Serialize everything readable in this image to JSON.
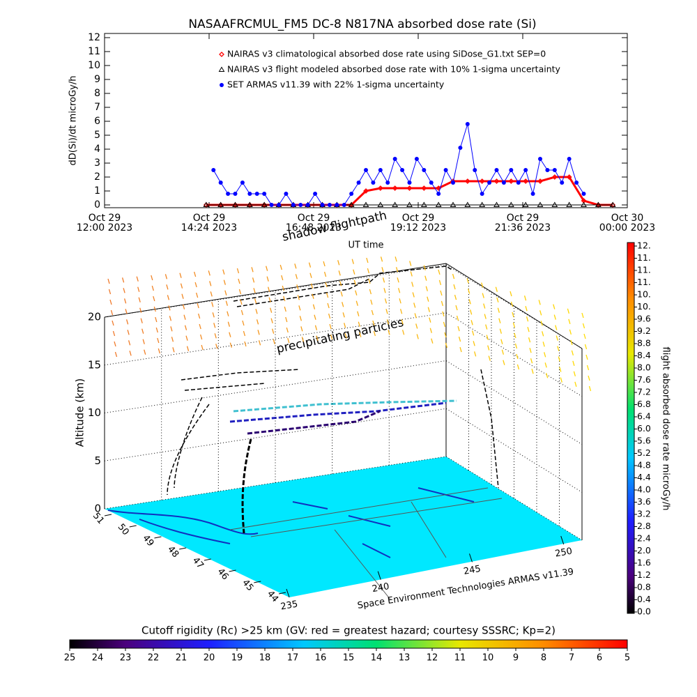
{
  "chart_data": [
    {
      "type": "line",
      "title": "NASAAFRCMUL_FM5 DC-8   N817NA absorbed dose rate (Si)",
      "y_label": "dD(Si)/dt microGy/h",
      "x_label": "UT time",
      "xlim": [
        "2023-10-29T12:00",
        "2023-10-30T00:00"
      ],
      "xticks": [
        {
          "value": "2023-10-29T12:00",
          "label": "Oct 29\n12:00 2023"
        },
        {
          "value": "2023-10-29T14:24",
          "label": "Oct 29\n14:24 2023"
        },
        {
          "value": "2023-10-29T16:48",
          "label": "Oct 29\n16:48 2023"
        },
        {
          "value": "2023-10-29T19:12",
          "label": "Oct 29\n19:12 2023"
        },
        {
          "value": "2023-10-29T21:36",
          "label": "Oct 29\n21:36 2023"
        },
        {
          "value": "2023-10-30T00:00",
          "label": "Oct 30\n00:00 2023"
        }
      ],
      "ylim": [
        -0.2,
        12.3
      ],
      "yticks": [
        0,
        1,
        2,
        3,
        4,
        5,
        6,
        7,
        8,
        9,
        10,
        11,
        12
      ],
      "series": [
        {
          "name": "NAIRAS v3 climatological absorbed dose rate using SiDose_G1.txt SEP=0",
          "color": "#ff0000",
          "marker": "diamond",
          "x": [
            "2023-10-29T14:20",
            "2023-10-29T14:40",
            "2023-10-29T15:00",
            "2023-10-29T15:20",
            "2023-10-29T15:40",
            "2023-10-29T16:00",
            "2023-10-29T16:20",
            "2023-10-29T16:40",
            "2023-10-29T17:00",
            "2023-10-29T17:20",
            "2023-10-29T17:40",
            "2023-10-29T18:00",
            "2023-10-29T18:20",
            "2023-10-29T18:40",
            "2023-10-29T19:00",
            "2023-10-29T19:20",
            "2023-10-29T19:40",
            "2023-10-29T20:00",
            "2023-10-29T20:20",
            "2023-10-29T20:40",
            "2023-10-29T21:00",
            "2023-10-29T21:20",
            "2023-10-29T21:40",
            "2023-10-29T22:00",
            "2023-10-29T22:20",
            "2023-10-29T22:40",
            "2023-10-29T23:00",
            "2023-10-29T23:20",
            "2023-10-29T23:40"
          ],
          "values": [
            0,
            0,
            0,
            0,
            0,
            0,
            0,
            0,
            0,
            0,
            0,
            1.0,
            1.2,
            1.2,
            1.2,
            1.2,
            1.2,
            1.7,
            1.7,
            1.7,
            1.7,
            1.7,
            1.7,
            1.7,
            2.0,
            2.0,
            0.3,
            0,
            0
          ]
        },
        {
          "name": "NAIRAS v3 flight modeled absorbed dose rate with 10% 1-sigma uncertainty",
          "color": "#000000",
          "marker": "triangle",
          "x": [
            "2023-10-29T14:20",
            "2023-10-29T14:40",
            "2023-10-29T15:00",
            "2023-10-29T15:20",
            "2023-10-29T15:40",
            "2023-10-29T16:00",
            "2023-10-29T16:20",
            "2023-10-29T16:40",
            "2023-10-29T17:00",
            "2023-10-29T17:20",
            "2023-10-29T17:40",
            "2023-10-29T18:00",
            "2023-10-29T18:20",
            "2023-10-29T18:40",
            "2023-10-29T19:00",
            "2023-10-29T19:20",
            "2023-10-29T19:40",
            "2023-10-29T20:00",
            "2023-10-29T20:20",
            "2023-10-29T20:40",
            "2023-10-29T21:00",
            "2023-10-29T21:20",
            "2023-10-29T21:40",
            "2023-10-29T22:00",
            "2023-10-29T22:20",
            "2023-10-29T22:40",
            "2023-10-29T23:00",
            "2023-10-29T23:20",
            "2023-10-29T23:40"
          ],
          "values": [
            0,
            0,
            0,
            0,
            0,
            0,
            0,
            0,
            0,
            0,
            0,
            0,
            0,
            0,
            0,
            0,
            0,
            0,
            0,
            0,
            0,
            0,
            0,
            0,
            0,
            0,
            0,
            0,
            0
          ]
        },
        {
          "name": "SET ARMAS v11.39 with 22% 1-sigma uncertainty",
          "color": "#0000ff",
          "marker": "circle",
          "x": [
            "2023-10-29T14:30",
            "2023-10-29T14:40",
            "2023-10-29T14:50",
            "2023-10-29T15:00",
            "2023-10-29T15:10",
            "2023-10-29T15:20",
            "2023-10-29T15:30",
            "2023-10-29T15:40",
            "2023-10-29T15:50",
            "2023-10-29T16:00",
            "2023-10-29T16:10",
            "2023-10-29T16:20",
            "2023-10-29T16:30",
            "2023-10-29T16:40",
            "2023-10-29T16:50",
            "2023-10-29T17:00",
            "2023-10-29T17:10",
            "2023-10-29T17:20",
            "2023-10-29T17:30",
            "2023-10-29T17:40",
            "2023-10-29T17:50",
            "2023-10-29T18:00",
            "2023-10-29T18:10",
            "2023-10-29T18:20",
            "2023-10-29T18:30",
            "2023-10-29T18:40",
            "2023-10-29T18:50",
            "2023-10-29T19:00",
            "2023-10-29T19:10",
            "2023-10-29T19:20",
            "2023-10-29T19:30",
            "2023-10-29T19:40",
            "2023-10-29T19:50",
            "2023-10-29T20:00",
            "2023-10-29T20:10",
            "2023-10-29T20:20",
            "2023-10-29T20:30",
            "2023-10-29T20:40",
            "2023-10-29T20:50",
            "2023-10-29T21:00",
            "2023-10-29T21:10",
            "2023-10-29T21:20",
            "2023-10-29T21:30",
            "2023-10-29T21:40",
            "2023-10-29T21:50",
            "2023-10-29T22:00",
            "2023-10-29T22:10",
            "2023-10-29T22:20",
            "2023-10-29T22:30",
            "2023-10-29T22:40",
            "2023-10-29T22:50",
            "2023-10-29T23:00"
          ],
          "values": [
            2.5,
            1.6,
            0.8,
            0.8,
            1.6,
            0.8,
            0.8,
            0.8,
            0,
            0,
            0.8,
            0,
            0,
            0,
            0.8,
            0,
            0,
            0,
            0,
            0.8,
            1.6,
            2.5,
            1.6,
            2.5,
            1.6,
            3.3,
            2.5,
            1.6,
            3.3,
            2.5,
            1.6,
            0.8,
            2.5,
            1.6,
            4.1,
            5.8,
            2.5,
            0.8,
            1.6,
            2.5,
            1.6,
            2.5,
            1.6,
            2.5,
            0.8,
            3.3,
            2.5,
            2.5,
            1.6,
            3.3,
            1.6,
            0.8
          ]
        }
      ]
    },
    {
      "type": "3d",
      "z_label": "Altitude (km)",
      "zlim": [
        0,
        20
      ],
      "zticks": [
        0,
        5,
        10,
        15,
        20
      ],
      "xlim": [
        235,
        251
      ],
      "xticks": [
        235,
        240,
        245,
        250
      ],
      "ylim": [
        44,
        51
      ],
      "yticks": [
        44,
        45,
        46,
        47,
        48,
        49,
        50,
        51
      ],
      "credit": "Space Environment Technologies ARMAS v11.39",
      "annotations": [
        "shadow flightpath",
        "precipitating particles"
      ]
    },
    {
      "type": "colorbar",
      "orientation": "vertical",
      "label": "flight absorbed dose rate microGy/h",
      "lim": [
        0,
        12
      ],
      "ticks": [
        {
          "value": 0,
          "label": "0.0"
        },
        {
          "value": 0.4,
          "label": "0.4"
        },
        {
          "value": 0.8,
          "label": "0.8"
        },
        {
          "value": 1.2,
          "label": "1.2"
        },
        {
          "value": 1.6,
          "label": "1.6"
        },
        {
          "value": 2.0,
          "label": "2.0"
        },
        {
          "value": 2.4,
          "label": "2.4"
        },
        {
          "value": 2.8,
          "label": "2.8"
        },
        {
          "value": 3.2,
          "label": "3.2"
        },
        {
          "value": 3.6,
          "label": "3.6"
        },
        {
          "value": 4.0,
          "label": "4.0"
        },
        {
          "value": 4.4,
          "label": "4.4"
        },
        {
          "value": 4.8,
          "label": "4.8"
        },
        {
          "value": 5.2,
          "label": "5.2"
        },
        {
          "value": 5.6,
          "label": "5.6"
        },
        {
          "value": 6.0,
          "label": "6.0"
        },
        {
          "value": 6.4,
          "label": "6.4"
        },
        {
          "value": 6.8,
          "label": "6.8"
        },
        {
          "value": 7.2,
          "label": "7.2"
        },
        {
          "value": 7.6,
          "label": "7.6"
        },
        {
          "value": 8.0,
          "label": "8.0"
        },
        {
          "value": 8.4,
          "label": "8.4"
        },
        {
          "value": 8.8,
          "label": "8.8"
        },
        {
          "value": 9.2,
          "label": "9.2"
        },
        {
          "value": 9.6,
          "label": "9.6"
        },
        {
          "value": 10.0,
          "label": "10."
        },
        {
          "value": 10.4,
          "label": "10."
        },
        {
          "value": 10.8,
          "label": "11."
        },
        {
          "value": 11.2,
          "label": "11."
        },
        {
          "value": 11.6,
          "label": "11."
        },
        {
          "value": 12.0,
          "label": "12."
        }
      ]
    },
    {
      "type": "colorbar",
      "orientation": "horizontal",
      "label": "Cutoff rigidity (Rc) >25 km (GV: red = greatest hazard; courtesy SSSRC; Kp=2)",
      "lim": [
        25,
        5
      ],
      "ticks": [
        25,
        24,
        23,
        22,
        21,
        20,
        19,
        18,
        17,
        16,
        15,
        14,
        13,
        12,
        11,
        10,
        9,
        8,
        7,
        6,
        5
      ]
    }
  ]
}
